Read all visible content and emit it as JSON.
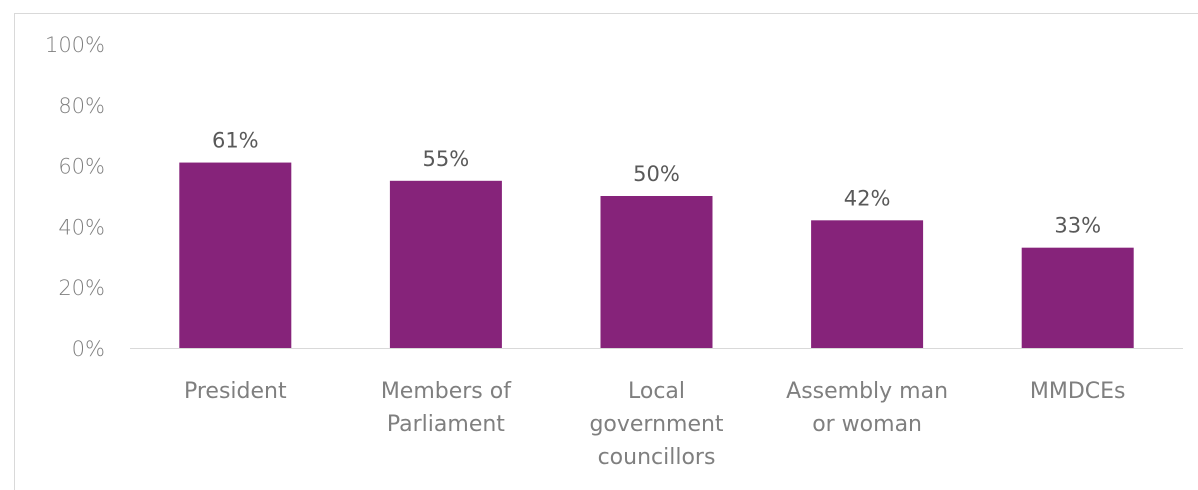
{
  "chart_data": {
    "type": "bar",
    "categories": [
      [
        "President"
      ],
      [
        "Members of",
        "Parliament"
      ],
      [
        "Local",
        "government",
        "councillors"
      ],
      [
        "Assembly man",
        "or woman"
      ],
      [
        "MMDCEs"
      ]
    ],
    "values": [
      61,
      55,
      50,
      42,
      33
    ],
    "data_labels": [
      "61%",
      "55%",
      "50%",
      "42%",
      "33%"
    ],
    "y_ticks": [
      "0%",
      "20%",
      "40%",
      "60%",
      "80%",
      "100%"
    ],
    "ylim": [
      0,
      100
    ],
    "y_format": "percent",
    "bar_color": "#86237A",
    "grid": false,
    "legend": "none"
  }
}
